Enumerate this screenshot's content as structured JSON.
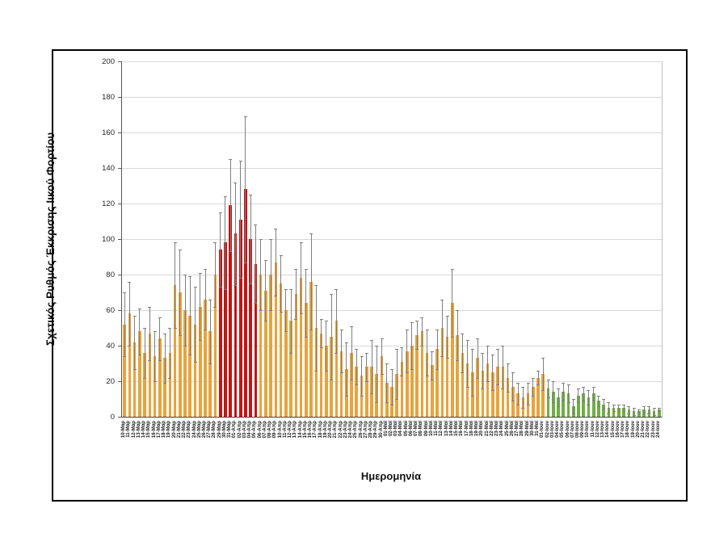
{
  "figure": {
    "y_axis_title": "Σχετικός Ρυθμός Έκκρισης Ιικού Φορτίου",
    "x_axis_title": "Ημερομηνία"
  },
  "chart_data": {
    "type": "bar",
    "title": "",
    "xlabel": "Ημερομηνία",
    "ylabel": "Σχετικός Ρυθμός Έκκρισης Ιικού Φορτίου",
    "ylim": [
      0,
      200
    ],
    "ytick_step": 20,
    "grid": true,
    "legend": false,
    "error_bars": "symmetric, gray caps",
    "colors": {
      "orange": "#E8A33C",
      "red": "#C41414",
      "green": "#70AD47",
      "error": "#7F7F7F",
      "gridline": "#D9D9D9"
    },
    "color_segments": [
      {
        "start_index": 0,
        "end_index": 18,
        "color_key": "orange",
        "note": "10-Μαρ to 28-Μαρ"
      },
      {
        "start_index": 19,
        "end_index": 26,
        "color_key": "red",
        "note": "29-Μαρ to 05-Απρ peak period"
      },
      {
        "start_index": 27,
        "end_index": 83,
        "color_key": "orange",
        "note": "06-Απρ to 01-Ιουν"
      },
      {
        "start_index": 84,
        "end_index": 106,
        "color_key": "green",
        "note": "02-Ιουν to 24-Ιουν"
      }
    ],
    "categories": [
      "10-Μαρ",
      "11-Μαρ",
      "12-Μαρ",
      "13-Μαρ",
      "14-Μαρ",
      "15-Μαρ",
      "16-Μαρ",
      "17-Μαρ",
      "18-Μαρ",
      "19-Μαρ",
      "20-Μαρ",
      "21-Μαρ",
      "22-Μαρ",
      "23-Μαρ",
      "24-Μαρ",
      "25-Μαρ",
      "26-Μαρ",
      "27-Μαρ",
      "28-Μαρ",
      "29-Μαρ",
      "30-Μαρ",
      "31-Μαρ",
      "01-Απρ",
      "02-Απρ",
      "03-Απρ",
      "04-Απρ",
      "05-Απρ",
      "06-Απρ",
      "07-Απρ",
      "08-Απρ",
      "09-Απρ",
      "10-Απρ",
      "11-Απρ",
      "12-Απρ",
      "13-Απρ",
      "14-Απρ",
      "15-Απρ",
      "16-Απρ",
      "17-Απρ",
      "18-Απρ",
      "19-Απρ",
      "20-Απρ",
      "21-Απρ",
      "22-Απρ",
      "23-Απρ",
      "24-Απρ",
      "25-Απρ",
      "26-Απρ",
      "27-Απρ",
      "28-Απρ",
      "29-Απρ",
      "30-Απρ",
      "01-Μαϊ",
      "02-Μαϊ",
      "03-Μαϊ",
      "04-Μαϊ",
      "05-Μαϊ",
      "06-Μαϊ",
      "07-Μαϊ",
      "08-Μαϊ",
      "09-Μαϊ",
      "10-Μαϊ",
      "11-Μαϊ",
      "12-Μαϊ",
      "13-Μαϊ",
      "14-Μαϊ",
      "15-Μαϊ",
      "16-Μαϊ",
      "17-Μαϊ",
      "18-Μαϊ",
      "19-Μαϊ",
      "20-Μαϊ",
      "21-Μαϊ",
      "22-Μαϊ",
      "23-Μαϊ",
      "24-Μαϊ",
      "25-Μαϊ",
      "26-Μαϊ",
      "27-Μαϊ",
      "28-Μαϊ",
      "29-Μαϊ",
      "30-Μαϊ",
      "31-Μαϊ",
      "01-Ιουν",
      "02-Ιουν",
      "03-Ιουν",
      "04-Ιουν",
      "05-Ιουν",
      "06-Ιουν",
      "07-Ιουν",
      "08-Ιουν",
      "09-Ιουν",
      "10-Ιουν",
      "11-Ιουν",
      "12-Ιουν",
      "13-Ιουν",
      "14-Ιουν",
      "15-Ιουν",
      "16-Ιουν",
      "17-Ιουν",
      "18-Ιουν",
      "19-Ιουν",
      "20-Ιουν",
      "21-Ιουν",
      "22-Ιουν",
      "23-Ιουν",
      "24-Ιουν"
    ],
    "values": [
      52,
      58,
      42,
      48,
      36,
      47,
      34,
      44,
      33,
      36,
      74,
      70,
      60,
      57,
      52,
      62,
      66,
      48,
      80,
      94,
      98,
      119,
      103,
      111,
      128,
      100,
      86,
      80,
      71,
      80,
      87,
      75,
      60,
      54,
      69,
      78,
      64,
      76,
      50,
      47,
      40,
      45,
      54,
      37,
      27,
      36,
      28,
      23,
      28,
      28,
      24,
      34,
      19,
      17,
      24,
      31,
      37,
      40,
      46,
      48,
      36,
      29,
      38,
      50,
      45,
      64,
      46,
      36,
      30,
      25,
      33,
      26,
      30,
      25,
      28,
      28,
      22,
      17,
      13,
      11,
      13,
      17,
      22,
      24,
      16,
      14,
      11,
      14,
      13,
      6,
      12,
      13,
      11,
      13,
      9,
      7,
      5,
      5,
      5,
      5,
      4,
      3,
      3,
      4,
      4,
      3,
      4
    ],
    "errors_high": [
      70,
      76,
      57,
      61,
      50,
      62,
      48,
      56,
      47,
      50,
      98,
      94,
      80,
      79,
      73,
      81,
      83,
      66,
      98,
      115,
      124,
      145,
      132,
      144,
      169,
      125,
      108,
      100,
      88,
      100,
      106,
      91,
      72,
      72,
      83,
      98,
      83,
      103,
      74,
      55,
      54,
      69,
      72,
      49,
      42,
      51,
      38,
      34,
      36,
      43,
      40,
      44,
      30,
      27,
      38,
      39,
      49,
      53,
      54,
      56,
      49,
      37,
      49,
      66,
      57,
      83,
      60,
      47,
      43,
      38,
      44,
      36,
      40,
      35,
      38,
      40,
      30,
      25,
      19,
      17,
      19,
      22,
      26,
      33,
      21,
      20,
      16,
      19,
      18,
      10,
      16,
      17,
      15,
      17,
      12,
      10,
      8,
      7,
      7,
      7,
      6,
      5,
      4,
      6,
      6,
      5,
      5
    ]
  }
}
